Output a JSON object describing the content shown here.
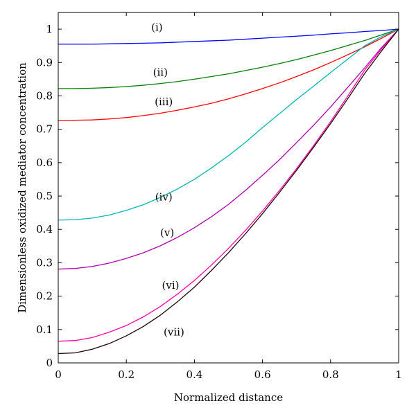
{
  "chart_data": {
    "type": "line",
    "xlabel": "Normalized distance",
    "ylabel": "Dimensionless oxidized mediator concentration",
    "xlim": [
      0,
      1
    ],
    "ylim": [
      0,
      1.05
    ],
    "x_ticks": [
      "0",
      "0.2",
      "0.4",
      "0.6",
      "0.8",
      "1"
    ],
    "y_ticks": [
      "0",
      "0.1",
      "0.2",
      "0.3",
      "0.4",
      "0.5",
      "0.6",
      "0.7",
      "0.8",
      "0.9",
      "1"
    ],
    "grid": false,
    "legend": "none",
    "x": [
      0,
      0.05,
      0.1,
      0.15,
      0.2,
      0.25,
      0.3,
      0.35,
      0.4,
      0.45,
      0.5,
      0.55,
      0.6,
      0.65,
      0.7,
      0.75,
      0.8,
      0.85,
      0.9,
      0.95,
      1
    ],
    "series": [
      {
        "label": "(i)",
        "label_x": 0.29,
        "label_y": 1.005,
        "color": "#0000ff",
        "values": [
          0.955,
          0.955,
          0.955,
          0.956,
          0.957,
          0.958,
          0.959,
          0.961,
          0.963,
          0.965,
          0.967,
          0.97,
          0.973,
          0.976,
          0.979,
          0.982,
          0.986,
          0.989,
          0.993,
          0.996,
          1.0
        ]
      },
      {
        "label": "(ii)",
        "label_x": 0.3,
        "label_y": 0.87,
        "color": "#008000",
        "values": [
          0.822,
          0.822,
          0.823,
          0.825,
          0.828,
          0.832,
          0.837,
          0.843,
          0.85,
          0.858,
          0.866,
          0.876,
          0.886,
          0.897,
          0.909,
          0.922,
          0.936,
          0.951,
          0.966,
          0.983,
          1.0
        ]
      },
      {
        "label": "(iii)",
        "label_x": 0.31,
        "label_y": 0.782,
        "color": "#ff0000",
        "values": [
          0.726,
          0.727,
          0.728,
          0.731,
          0.735,
          0.741,
          0.748,
          0.757,
          0.767,
          0.778,
          0.791,
          0.806,
          0.822,
          0.839,
          0.858,
          0.878,
          0.9,
          0.923,
          0.947,
          0.973,
          1.0
        ]
      },
      {
        "label": "(iv)",
        "label_x": 0.31,
        "label_y": 0.497,
        "color": "#00b5b5",
        "values": [
          0.428,
          0.429,
          0.434,
          0.443,
          0.457,
          0.474,
          0.496,
          0.521,
          0.55,
          0.584,
          0.621,
          0.661,
          0.705,
          0.747,
          0.789,
          0.829,
          0.87,
          0.91,
          0.95,
          0.978,
          1.0
        ]
      },
      {
        "label": "(v)",
        "label_x": 0.32,
        "label_y": 0.39,
        "color": "#b000b0",
        "values": [
          0.281,
          0.283,
          0.289,
          0.299,
          0.313,
          0.33,
          0.351,
          0.376,
          0.405,
          0.438,
          0.475,
          0.517,
          0.562,
          0.609,
          0.66,
          0.712,
          0.767,
          0.825,
          0.884,
          0.945,
          1.0
        ]
      },
      {
        "label": "(vi)",
        "label_x": 0.33,
        "label_y": 0.232,
        "color": "#ff00aa",
        "values": [
          0.065,
          0.067,
          0.076,
          0.092,
          0.112,
          0.138,
          0.169,
          0.206,
          0.247,
          0.293,
          0.343,
          0.397,
          0.455,
          0.517,
          0.582,
          0.651,
          0.723,
          0.799,
          0.877,
          0.941,
          1.0
        ]
      },
      {
        "label": "(vii)",
        "label_x": 0.34,
        "label_y": 0.092,
        "color": "#200000",
        "values": [
          0.028,
          0.03,
          0.041,
          0.058,
          0.081,
          0.109,
          0.143,
          0.183,
          0.227,
          0.277,
          0.33,
          0.387,
          0.447,
          0.511,
          0.577,
          0.646,
          0.717,
          0.791,
          0.867,
          0.935,
          1.0
        ]
      }
    ]
  }
}
